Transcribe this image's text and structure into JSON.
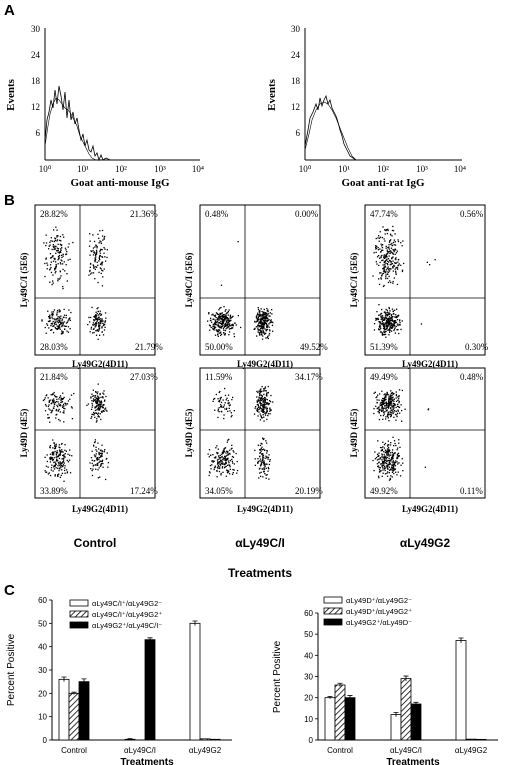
{
  "panel_labels": {
    "a": "A",
    "b": "B",
    "c": "C"
  },
  "histograms": [
    {
      "xlabel": "Goat anti-mouse IgG",
      "ylabel": "Events",
      "yticks": [
        "30",
        "24",
        "18",
        "12",
        "6"
      ],
      "xticks": [
        "10⁰",
        "10¹",
        "10²",
        "10³",
        "10⁴"
      ]
    },
    {
      "xlabel": "Goat anti-rat IgG",
      "ylabel": "Events",
      "yticks": [
        "30",
        "24",
        "18",
        "12",
        "6"
      ],
      "xticks": [
        "10⁰",
        "10¹",
        "10²",
        "10³",
        "10⁴"
      ]
    }
  ],
  "scatter_panels": [
    {
      "ylabel": "Ly49C/I (5E6)",
      "xlabel": "Ly49G2(4D11)",
      "ul": "28.82%",
      "ur": "21.36%",
      "ll": "28.03%",
      "lr": "21.79%"
    },
    {
      "ylabel": "Ly49C/I (5E6)",
      "xlabel": "Ly49G2(4D11)",
      "ul": "0.48%",
      "ur": "0.00%",
      "ll": "50.00%",
      "lr": "49.52%"
    },
    {
      "ylabel": "Ly49C/I (5E6)",
      "xlabel": "Ly49G2(4D11)",
      "ul": "47.74%",
      "ur": "0.56%",
      "ll": "51.39%",
      "lr": "0.30%"
    },
    {
      "ylabel": "Ly49D (4E5)",
      "xlabel": "Ly49G2(4D11)",
      "ul": "21.84%",
      "ur": "27.03%",
      "ll": "33.89%",
      "lr": "17.24%"
    },
    {
      "ylabel": "Ly49D (4E5)",
      "xlabel": "Ly49G2(4D11)",
      "ul": "11.59%",
      "ur": "34.17%",
      "ll": "34.05%",
      "lr": "20.19%"
    },
    {
      "ylabel": "Ly49D (4E5)",
      "xlabel": "Ly49G2(4D11)",
      "ul": "49.49%",
      "ur": "0.48%",
      "ll": "49.92%",
      "lr": "0.11%"
    }
  ],
  "scatter_columns": [
    "Control",
    "αLy49C/I",
    "αLy49G2"
  ],
  "scatter_treatments_label": "Treatments",
  "chart_data": [
    {
      "type": "bar",
      "categories": [
        "Control",
        "αLy49C/I",
        "αLy49G2"
      ],
      "series": [
        {
          "name": "αLy49C/I⁺/αLy49G2⁻",
          "values": [
            26,
            0.3,
            50
          ]
        },
        {
          "name": "αLy49C/I⁺/αLy49G2⁺",
          "values": [
            20,
            0,
            0.5
          ]
        },
        {
          "name": "αLy49G2⁺/αLy49C/I⁻",
          "values": [
            25,
            43,
            0.3
          ]
        }
      ],
      "errors": [
        [
          1,
          0.3,
          1
        ],
        [
          0.5,
          0,
          0
        ],
        [
          1.2,
          0.8,
          0
        ]
      ],
      "xlabel": "Treatments",
      "ylabel": "Percent Positive",
      "ylim": [
        0,
        60
      ],
      "yticks": [
        0,
        10,
        20,
        30,
        40,
        50,
        60
      ]
    },
    {
      "type": "bar",
      "categories": [
        "Control",
        "αLy49C/I",
        "αLy49G2"
      ],
      "series": [
        {
          "name": "αLy49D⁺/αLy49G2⁻",
          "values": [
            20,
            12,
            47
          ]
        },
        {
          "name": "αLy49D⁺/αLy49G2⁺",
          "values": [
            26,
            29,
            0.4
          ]
        },
        {
          "name": "αLy49G2⁺/αLy49D⁻",
          "values": [
            20,
            17,
            0.3
          ]
        }
      ],
      "errors": [
        [
          0.6,
          1,
          1.2
        ],
        [
          0.8,
          1.2,
          0
        ],
        [
          1,
          0.8,
          0
        ]
      ],
      "xlabel": "Treatments",
      "ylabel": "Percent Positive",
      "ylim": [
        0,
        60
      ],
      "yticks": [
        0,
        10,
        20,
        30,
        40,
        50,
        60
      ]
    }
  ]
}
